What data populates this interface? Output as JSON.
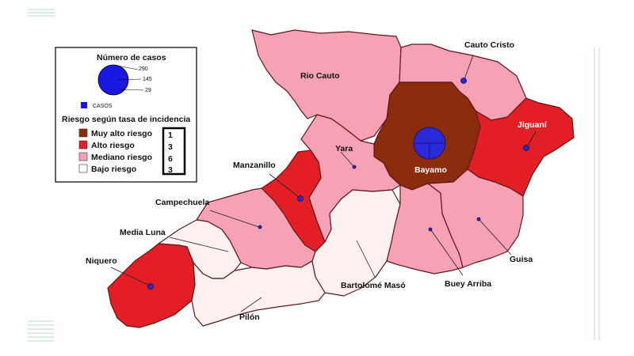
{
  "legend": {
    "size_title": "Número de casos",
    "size_ticks": [
      "290",
      "145",
      "29"
    ],
    "symbol_label": "CASOS",
    "risk_title": "Riesgo según tasa de incidencia",
    "classes": [
      {
        "label": "Muy alto riesgo",
        "count": "1",
        "color": "#8b2c0d"
      },
      {
        "label": "Alto riesgo",
        "count": "3",
        "color": "#e31f25"
      },
      {
        "label": "Mediano riesgo",
        "count": "6",
        "color": "#f7a1b4"
      },
      {
        "label": "Bajo riesgo",
        "count": "3",
        "color": "#fdf1f0"
      }
    ]
  },
  "municipalities": {
    "rio_cauto": "Rio Cauto",
    "cauto_cristo": "Cauto Cristo",
    "jiguani": "Jiguaní",
    "bayamo": "Bayamo",
    "yara": "Yara",
    "manzanillo": "Manzanillo",
    "campechuela": "Campechuela",
    "media_luna": "Media Luna",
    "niquero": "Niquero",
    "pilon": "Pilón",
    "bartolome_maso": "Bartolomé Masó",
    "buey_arriba": "Buey Arriba",
    "guisa": "Guisa"
  }
}
